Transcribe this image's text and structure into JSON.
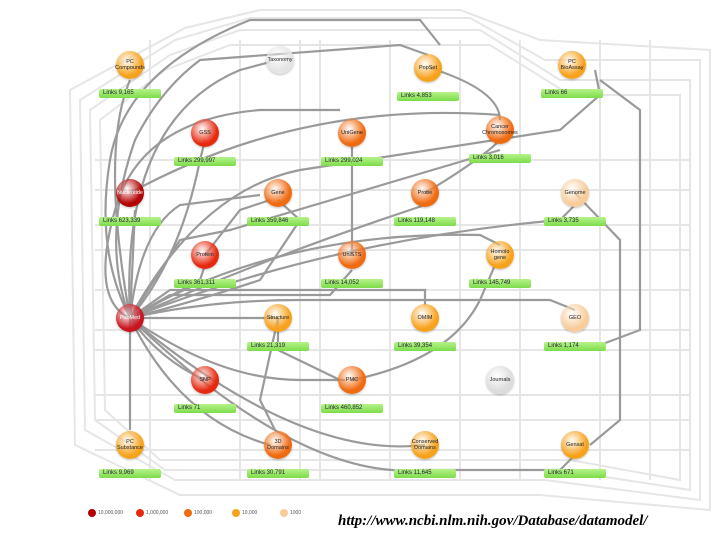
{
  "url": "http://www.ncbi.nlm.nih.gov/Database/datamodel/",
  "legend": [
    {
      "label": "10,000,000",
      "color": "#b30000"
    },
    {
      "label": "1,000,000",
      "color": "#e62a10"
    },
    {
      "label": "100,000",
      "color": "#f06a10"
    },
    {
      "label": "10,000",
      "color": "#f7a21b"
    },
    {
      "label": "1000",
      "color": "#f8cc9a"
    }
  ],
  "nodes": [
    {
      "id": "pc-compounds",
      "label": "PC\nCompounds",
      "links": "Links 9,165",
      "color": "#f7a21b"
    },
    {
      "id": "taxonomy",
      "label": "Taxonomy",
      "links": "",
      "color": "#e4e4e4"
    },
    {
      "id": "pubchem",
      "label": "PopSet",
      "links": "Links 4,853",
      "color": "#f7a21b"
    },
    {
      "id": "pc-bioassay",
      "label": "PC\nBioAssay",
      "links": "Links 66",
      "color": "#f7a21b"
    },
    {
      "id": "gss",
      "label": "GSS",
      "links": "Links 299,997",
      "color": "#e62a10"
    },
    {
      "id": "unigene",
      "label": "UniGene",
      "links": "Links 299,024",
      "color": "#f06a10"
    },
    {
      "id": "cancer-chromosomes",
      "label": "Cancer\nChromosomes",
      "links": "Links 3,016",
      "color": "#f06a10"
    },
    {
      "id": "nucleotide",
      "label": "Nucleotide",
      "links": "Links 623,339",
      "color": "#b30000"
    },
    {
      "id": "gene",
      "label": "Gene",
      "links": "Links 359,846",
      "color": "#f06a10"
    },
    {
      "id": "probe",
      "label": "Probe",
      "links": "Links 119,148",
      "color": "#f06a10"
    },
    {
      "id": "genome",
      "label": "Genome",
      "links": "Links 3,735",
      "color": "#f8cc9a"
    },
    {
      "id": "protein",
      "label": "Protein",
      "links": "Links 361,311",
      "color": "#e62a10"
    },
    {
      "id": "unists",
      "label": "UniSTS",
      "links": "Links 14,052",
      "color": "#f06a10"
    },
    {
      "id": "homologene",
      "label": "Homolo\ngene",
      "links": "Links 145,749",
      "color": "#f7a21b"
    },
    {
      "id": "pubmed",
      "label": "PubMed",
      "links": "",
      "color": "#c8141e"
    },
    {
      "id": "structure",
      "label": "Structure",
      "links": "Links 21,319",
      "color": "#f7a21b"
    },
    {
      "id": "omim",
      "label": "OMIM",
      "links": "Links 39,354",
      "color": "#f7a21b"
    },
    {
      "id": "geo",
      "label": "GEO",
      "links": "Links 1,174",
      "color": "#f8cc9a"
    },
    {
      "id": "snp",
      "label": "SNP",
      "links": "Links 71",
      "color": "#e62a10"
    },
    {
      "id": "pmc",
      "label": "PMC",
      "links": "Links 460,852",
      "color": "#f06a10"
    },
    {
      "id": "journals",
      "label": "Journals",
      "links": "",
      "color": "#dcdcdc"
    },
    {
      "id": "pc-substance",
      "label": "PC\nSubstance",
      "links": "Links 9,969",
      "color": "#f7a21b"
    },
    {
      "id": "3d-domains",
      "label": "3D\nDomains",
      "links": "Links 30,791",
      "color": "#f06a10"
    },
    {
      "id": "conserved-domains",
      "label": "Conserved\nDomains",
      "links": "Links 11,645",
      "color": "#f7a21b"
    },
    {
      "id": "genbank-sets",
      "label": "Gensat",
      "links": "Links 671",
      "color": "#f7a21b"
    }
  ]
}
